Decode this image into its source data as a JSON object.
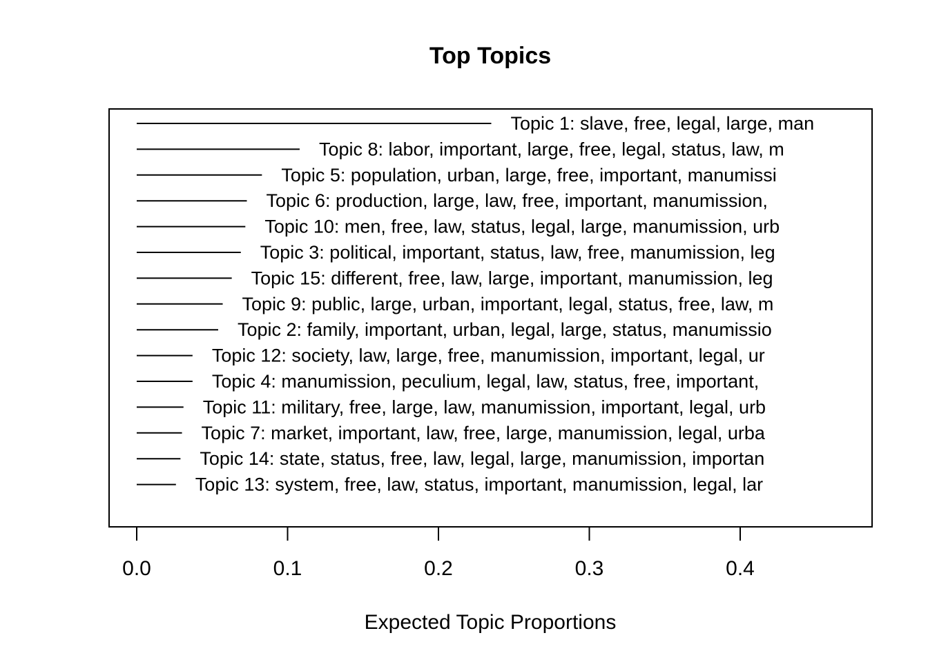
{
  "chart_data": {
    "type": "bar",
    "title": "Top Topics",
    "xlabel": "Expected Topic Proportions",
    "ylabel": "",
    "xlim": [
      0.0,
      0.4
    ],
    "xticks": [
      "0.0",
      "0.1",
      "0.2",
      "0.3",
      "0.4"
    ],
    "xtick_values": [
      0.0,
      0.1,
      0.2,
      0.3,
      0.4
    ],
    "grid": false,
    "legend": "none",
    "series": [
      {
        "categories": [
          "Topic 1: slave, free, legal, large, man",
          "Topic 8: labor, important, large, free, legal, status, law, m",
          "Topic 5: population, urban, large, free, important, manumissi",
          "Topic 6: production, large, law, free, important, manumission,",
          "Topic 10: men, free, law, status, legal, large, manumission, urb",
          "Topic 3: political, important, status, law, free, manumission, leg",
          "Topic 15: different, free, law, large, important, manumission, leg",
          "Topic 9: public, large, urban, important, legal, status, free, law, m",
          "Topic 2: family, important, urban, legal, large, status, manumissio",
          "Topic 12: society, law, large, free, manumission, important, legal, ur",
          "Topic 4: manumission, peculium, legal, law, status, free, important,",
          "Topic 11: military, free, large, law, manumission, important, legal, urb",
          "Topic 7: market, important, law, free, large, manumission, legal, urba",
          "Topic 14: state, status, free, law, legal, large, manumission, importan",
          "Topic 13: system, free, law, status, important, manumission, legal, lar"
        ],
        "values": [
          0.235,
          0.108,
          0.083,
          0.073,
          0.072,
          0.069,
          0.063,
          0.057,
          0.054,
          0.037,
          0.037,
          0.031,
          0.03,
          0.029,
          0.026
        ]
      }
    ]
  }
}
